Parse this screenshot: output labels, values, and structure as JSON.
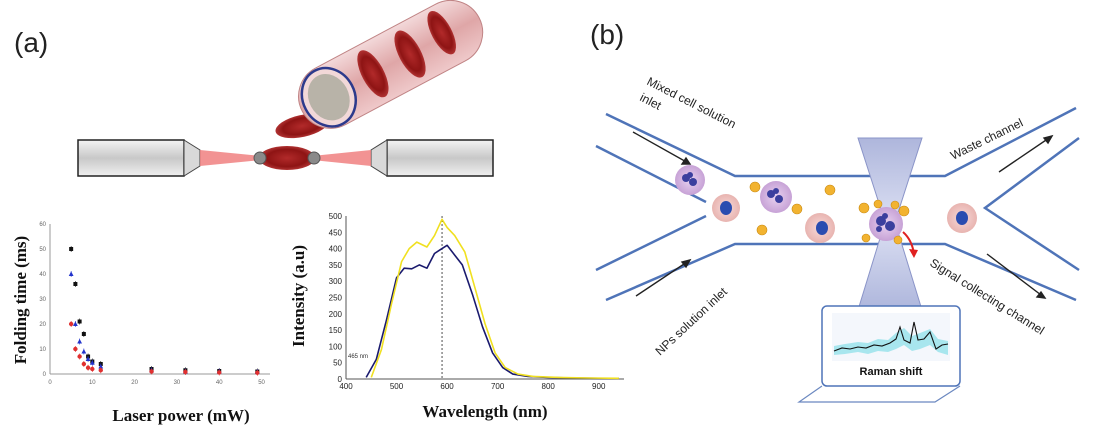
{
  "panel_a": {
    "label": "(a)",
    "left_chart": {
      "ylabel": "Folding time (ms)",
      "xlabel": "Laser power (mW)",
      "y_ticks": [
        "0",
        "10",
        "20",
        "30",
        "40",
        "50",
        "60"
      ],
      "x_ticks": [
        "0",
        "10",
        "20",
        "30",
        "40",
        "50"
      ]
    },
    "right_chart": {
      "ylabel": "Intensity (a.u)",
      "xlabel": "Wavelength (nm)",
      "y_ticks": [
        "0",
        "50",
        "100",
        "150",
        "200",
        "250",
        "300",
        "350",
        "400",
        "450",
        "500"
      ],
      "x_ticks": [
        "400",
        "500",
        "600",
        "700",
        "800",
        "900"
      ],
      "annotation": "465 nm"
    }
  },
  "panel_b": {
    "label": "(b)",
    "inlet_top": [
      "Mixed cell solution",
      "inlet"
    ],
    "inlet_bottom": "NPs solution inlet",
    "outlet_top": "Waste channel",
    "outlet_bottom": "Signal collecting  channel",
    "laptop_label": "Raman shift"
  },
  "chart_data": [
    {
      "type": "scatter",
      "ylabel": "Folding time (ms)",
      "xlabel": "Laser power (mW)",
      "xlim": [
        0,
        52
      ],
      "ylim": [
        0,
        60
      ],
      "series": [
        {
          "color": "#111111",
          "marker": "square",
          "points": [
            [
              5,
              50
            ],
            [
              6,
              36
            ],
            [
              7,
              21
            ],
            [
              8,
              16
            ],
            [
              9,
              7
            ],
            [
              10,
              5
            ],
            [
              12,
              4
            ],
            [
              24,
              2
            ],
            [
              32,
              1.5
            ],
            [
              40,
              1.2
            ],
            [
              49,
              1
            ]
          ]
        },
        {
          "color": "#2233cc",
          "marker": "triangle",
          "points": [
            [
              5,
              40
            ],
            [
              6,
              20
            ],
            [
              7,
              13
            ],
            [
              8,
              9
            ],
            [
              9,
              6
            ],
            [
              10,
              4.5
            ],
            [
              12,
              3
            ],
            [
              24,
              1.5
            ],
            [
              32,
              1
            ],
            [
              40,
              1
            ],
            [
              49,
              0.8
            ]
          ]
        },
        {
          "color": "#e03030",
          "marker": "circle",
          "points": [
            [
              5,
              20
            ],
            [
              6,
              10
            ],
            [
              7,
              7
            ],
            [
              8,
              4
            ],
            [
              9,
              2.5
            ],
            [
              10,
              2
            ],
            [
              12,
              1.5
            ],
            [
              24,
              1
            ],
            [
              32,
              0.8
            ],
            [
              40,
              0.6
            ],
            [
              49,
              0.5
            ]
          ]
        }
      ]
    },
    {
      "type": "line",
      "ylabel": "Intensity (a.u)",
      "xlabel": "Wavelength (nm)",
      "xlim": [
        400,
        950
      ],
      "ylim": [
        0,
        500
      ],
      "series": [
        {
          "color": "#1a1a6e",
          "points": [
            [
              440,
              5
            ],
            [
              460,
              60
            ],
            [
              480,
              180
            ],
            [
              500,
              310
            ],
            [
              515,
              340
            ],
            [
              530,
              338
            ],
            [
              545,
              350
            ],
            [
              560,
              340
            ],
            [
              575,
              385
            ],
            [
              585,
              395
            ],
            [
              600,
              410
            ],
            [
              615,
              380
            ],
            [
              630,
              350
            ],
            [
              650,
              260
            ],
            [
              670,
              160
            ],
            [
              690,
              80
            ],
            [
              710,
              35
            ],
            [
              730,
              15
            ],
            [
              760,
              8
            ],
            [
              800,
              5
            ],
            [
              850,
              3
            ],
            [
              900,
              2
            ],
            [
              940,
              2
            ]
          ]
        },
        {
          "color": "#f0e020",
          "points": [
            [
              450,
              5
            ],
            [
              470,
              90
            ],
            [
              490,
              230
            ],
            [
              510,
              360
            ],
            [
              525,
              400
            ],
            [
              540,
              420
            ],
            [
              560,
              405
            ],
            [
              575,
              440
            ],
            [
              590,
              490
            ],
            [
              600,
              465
            ],
            [
              615,
              440
            ],
            [
              635,
              390
            ],
            [
              655,
              280
            ],
            [
              675,
              170
            ],
            [
              695,
              80
            ],
            [
              715,
              35
            ],
            [
              740,
              15
            ],
            [
              770,
              8
            ],
            [
              820,
              5
            ],
            [
              880,
              3
            ],
            [
              940,
              2
            ]
          ]
        }
      ],
      "reference_line_x": 590
    }
  ]
}
